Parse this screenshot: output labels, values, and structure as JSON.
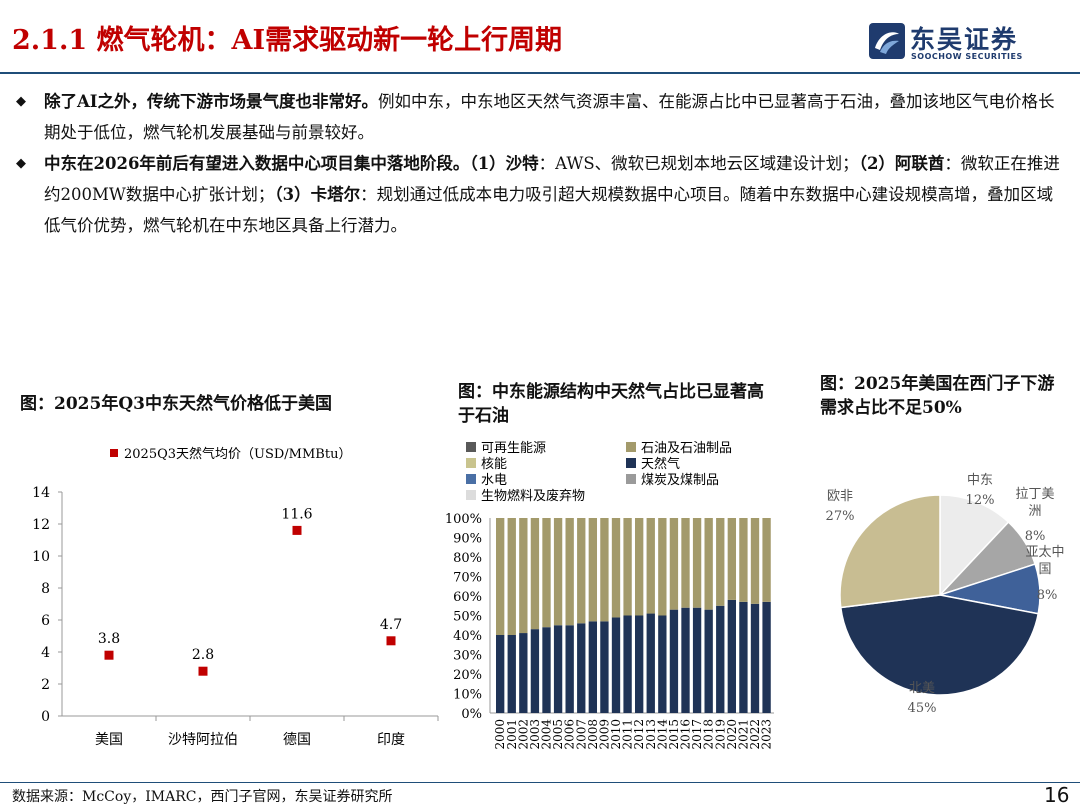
{
  "slide": {
    "title": "2.1.1 燃气轮机：AI需求驱动新一轮上行周期",
    "logo": {
      "cn": "东吴证券",
      "en": "SOOCHOW SECURITIES"
    },
    "bullets": [
      {
        "bold": "除了AI之外，传统下游市场景气度也非常好。",
        "text": "例如中东，中东地区天然气资源丰富、在能源占比中已显著高于石油，叠加该地区气电价格长期处于低位，燃气轮机发展基础与前景较好。"
      },
      {
        "bold": "中东在2026年前后有望进入数据中心项目集中落地阶段。",
        "p1": "（1）",
        "b1": "沙特",
        "t1": "：AWS、微软已规划本地云区域建设计划；",
        "p2": "（2）",
        "b2": "阿联酋",
        "t2": "：微软正在推进约200MW数据中心扩张计划；",
        "p3": "（3）",
        "b3": "卡塔尔",
        "t3": "：规划通过低成本电力吸引超大规模数据中心项目。随着中东数据中心建设规模高增，叠加区域低气价优势，燃气轮机在中东地区具备上行潜力。"
      }
    ],
    "source": "数据来源：McCoy，IMARC，西门子官网，东吴证券研究所",
    "page": "16"
  },
  "captions": {
    "chart1": "图：2025年Q3中东天然气价格低于美国",
    "chart2": "图：中东能源结构中天然气占比已显著高于石油",
    "chart3": "图：2025年美国在西门子下游需求占比不足50%"
  },
  "chart_data": [
    {
      "type": "scatter",
      "title": "图：2025年Q3中东天然气价格低于美国",
      "legend": "2025Q3天然气均价（USD/MMBtu）",
      "categories": [
        "美国",
        "沙特阿拉伯",
        "德国",
        "印度"
      ],
      "values": [
        3.8,
        2.8,
        11.6,
        4.7
      ],
      "labels": [
        "3.8",
        "2.8",
        "11.6",
        "4.7"
      ],
      "ylim": [
        0,
        14
      ],
      "yticks": [
        "0",
        "2",
        "4",
        "6",
        "8",
        "10",
        "12",
        "14"
      ],
      "color": "#c00000"
    },
    {
      "type": "bar",
      "stacked": true,
      "title": "图：中东能源结构中天然气占比已显著高于石油",
      "legend": [
        "可再生能源",
        "石油及石油制品",
        "核能",
        "天然气",
        "水电",
        "煤炭及煤制品",
        "生物燃料及废弃物"
      ],
      "colors": {
        "可再生能源": "#595959",
        "石油及石油制品": "#a39a6b",
        "核能": "#c9c48e",
        "天然气": "#1f3356",
        "水电": "#4a6fa5",
        "煤炭及煤制品": "#9a9a9a",
        "生物燃料及废弃物": "#dcdcdc"
      },
      "categories": [
        "2000",
        "2001",
        "2002",
        "2003",
        "2004",
        "2005",
        "2006",
        "2007",
        "2008",
        "2009",
        "2010",
        "2011",
        "2012",
        "2013",
        "2014",
        "2015",
        "2016",
        "2017",
        "2018",
        "2019",
        "2020",
        "2021",
        "2022",
        "2023"
      ],
      "series": [
        {
          "name": "天然气",
          "values": [
            40,
            40,
            41,
            43,
            44,
            45,
            45,
            46,
            47,
            47,
            49,
            50,
            50,
            51,
            50,
            53,
            54,
            54,
            53,
            55,
            58,
            57,
            56,
            57
          ]
        },
        {
          "name": "石油及石油制品",
          "values": [
            60,
            60,
            59,
            57,
            56,
            55,
            55,
            54,
            53,
            53,
            51,
            50,
            50,
            49,
            50,
            47,
            46,
            46,
            47,
            45,
            42,
            43,
            44,
            43
          ]
        }
      ],
      "ylim": [
        0,
        100
      ],
      "yticks": [
        "0%",
        "10%",
        "20%",
        "30%",
        "40%",
        "50%",
        "60%",
        "70%",
        "80%",
        "90%",
        "100%"
      ]
    },
    {
      "type": "pie",
      "title": "图：2025年美国在西门子下游需求占比不足50%",
      "slices": [
        {
          "name": "中东",
          "value": 12,
          "label": "12%",
          "color": "#ececec"
        },
        {
          "name": "拉丁美洲",
          "value": 8,
          "label": "8%",
          "color": "#a6a6a6"
        },
        {
          "name": "亚太中国",
          "value": 8,
          "label": "8%",
          "color": "#3f6199"
        },
        {
          "name": "北美",
          "value": 45,
          "label": "45%",
          "color": "#1f3356"
        },
        {
          "name": "欧非",
          "value": 27,
          "label": "27%",
          "color": "#c8bd92"
        }
      ]
    }
  ]
}
